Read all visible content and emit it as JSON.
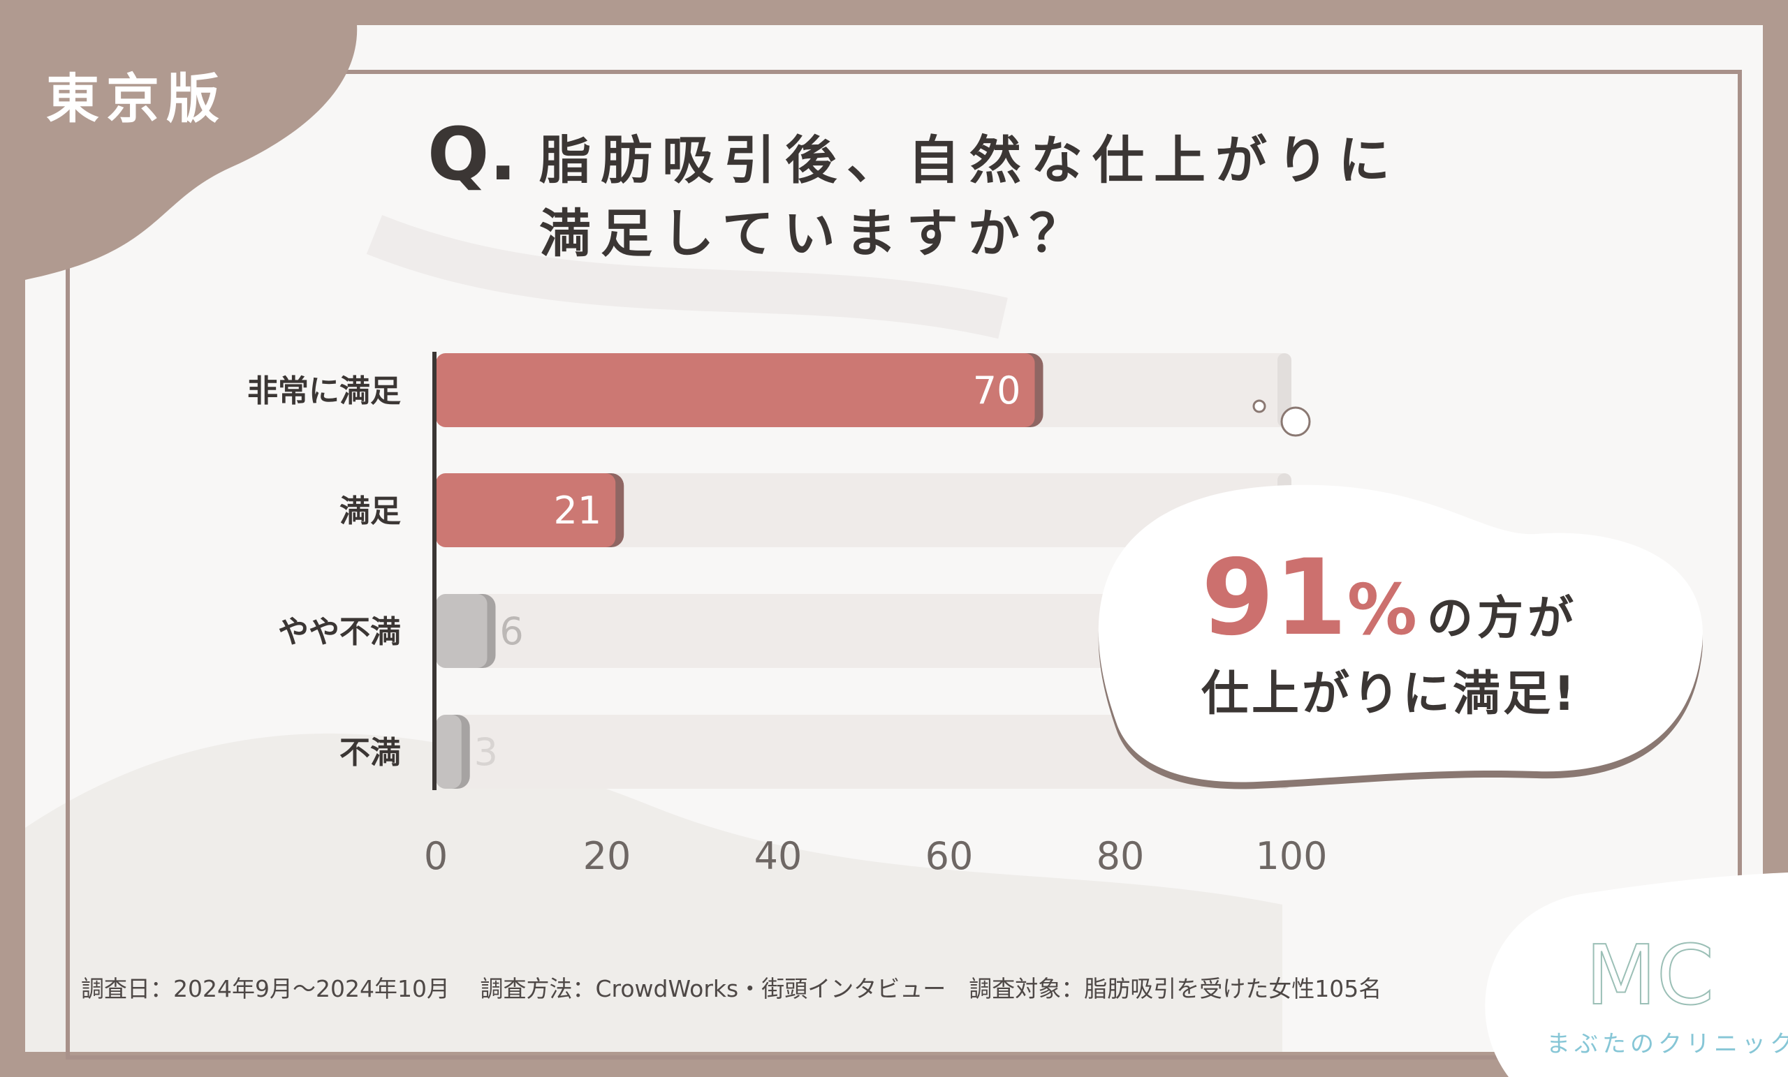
{
  "region": "東京版",
  "question": {
    "mark": "Q.",
    "line1": "脂肪吸引後、自然な仕上がりに",
    "line2": "満足していますか？"
  },
  "callout": {
    "percent": "91",
    "percent_sign": "%",
    "line1_rest": "の方が",
    "line2": "仕上がりに満足!"
  },
  "footnote": "調査日：2024年9月～2024年10月　 調査方法：CrowdWorks・街頭インタビュー　調査対象：脂肪吸引を受けた女性105名",
  "logo": {
    "mark": "MC",
    "name": "まぶたのクリニック"
  },
  "colors": {
    "frame": "#b09a90",
    "bar_primary": "#cc7873",
    "bar_secondary": "#c4c1c0",
    "track": "#efebe9",
    "accent_text": "#cc706e",
    "logo": "#86c6d6"
  },
  "chart_data": {
    "type": "bar",
    "orientation": "horizontal",
    "categories": [
      "非常に満足",
      "満足",
      "やや不満",
      "不満"
    ],
    "values": [
      70,
      21,
      6,
      3
    ],
    "value_labels": [
      "70",
      "21",
      "6",
      "3"
    ],
    "xlim": [
      0,
      100
    ],
    "xticks": [
      "0",
      "20",
      "40",
      "60",
      "80",
      "100"
    ],
    "grid": false,
    "legend": "none"
  }
}
